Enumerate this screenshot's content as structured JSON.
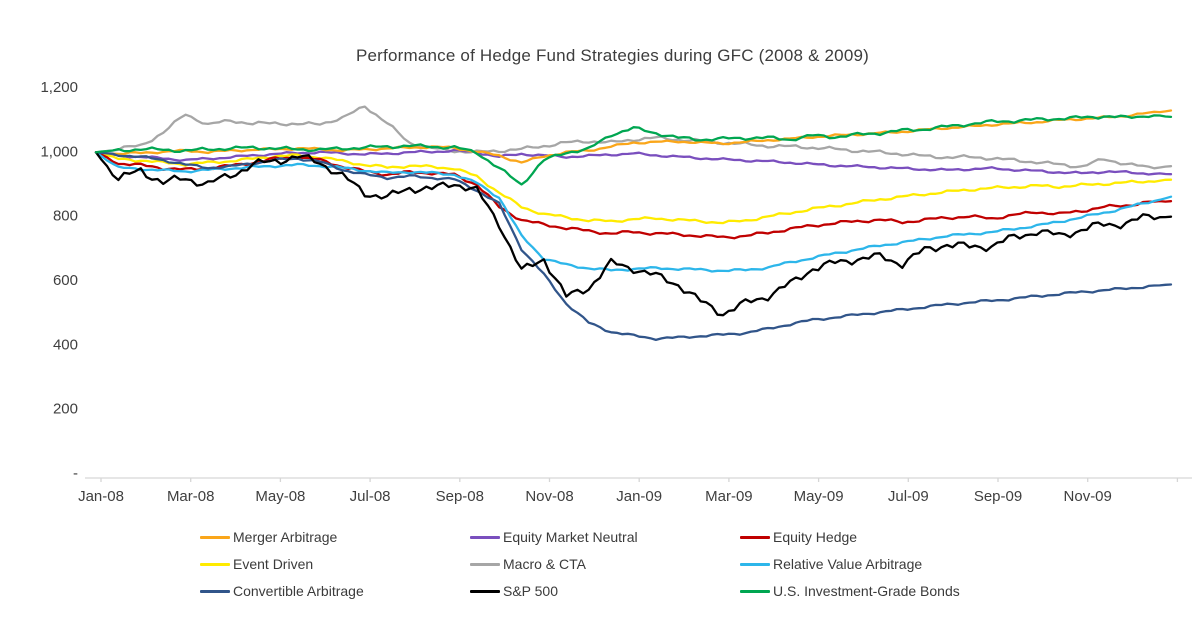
{
  "title": "Performance of Hedge Fund Strategies during GFC (2008 & 2009)",
  "chart_data": {
    "type": "line",
    "title": "Performance of Hedge Fund Strategies during GFC (2008 & 2009)",
    "xlabel": "",
    "ylabel": "",
    "xlim_months": [
      0,
      24
    ],
    "ylim": [
      0,
      1200
    ],
    "grid": false,
    "legend_position": "bottom",
    "x_start_label": "Jan-08",
    "x_step_months": 0.5,
    "x_tick_labels": [
      "Jan-08",
      "Mar-08",
      "May-08",
      "Jul-08",
      "Sep-08",
      "Nov-08",
      "Jan-09",
      "Mar-09",
      "May-09",
      "Jul-09",
      "Sep-09",
      "Nov-09"
    ],
    "y_ticks": [
      {
        "value": 0,
        "label": "-"
      },
      {
        "value": 200,
        "label": "200"
      },
      {
        "value": 400,
        "label": "400"
      },
      {
        "value": 600,
        "label": "600"
      },
      {
        "value": 800,
        "label": "800"
      },
      {
        "value": 1000,
        "label": "1,000"
      },
      {
        "value": 1200,
        "label": "1,200"
      }
    ],
    "axis_color": "#d6d6d6",
    "label_color": "#3f3f3f",
    "legend_rows": [
      [
        "Merger Arbitrage",
        "Equity Market Neutral",
        "Equity Hedge"
      ],
      [
        "Event Driven",
        "Macro & CTA",
        "Relative Value Arbitrage"
      ],
      [
        "Convertible Arbitrage",
        "S&P 500",
        "U.S. Investment-Grade Bonds"
      ]
    ],
    "series": [
      {
        "name": "Macro & CTA",
        "color": "#A6A6A6",
        "jitter": 2.0,
        "values": [
          1000,
          1010,
          1022,
          1060,
          1120,
          1085,
          1100,
          1088,
          1092,
          1086,
          1090,
          1105,
          1145,
          1090,
          1030,
          1012,
          1005,
          1000,
          1005,
          1010,
          1020,
          1030,
          1035,
          1030,
          1040,
          1045,
          1040,
          1035,
          1030,
          1025,
          1020,
          1018,
          1015,
          1010,
          1005,
          1000,
          995,
          988,
          985,
          985,
          982,
          975,
          970,
          962,
          956,
          978,
          965,
          952,
          957
        ]
      },
      {
        "name": "Equity Market Neutral",
        "color": "#7A4FBE",
        "jitter": 1.3,
        "values": [
          1000,
          990,
          986,
          981,
          976,
          980,
          985,
          990,
          995,
          998,
          1000,
          997,
          994,
          996,
          1000,
          1002,
          1005,
          1000,
          986,
          995,
          990,
          986,
          989,
          993,
          996,
          991,
          986,
          982,
          978,
          975,
          972,
          968,
          963,
          959,
          956,
          953,
          950,
          947,
          945,
          948,
          950,
          946,
          942,
          938,
          935,
          940,
          938,
          934,
          932
        ]
      },
      {
        "name": "Merger Arbitrage",
        "color": "#FAA61A",
        "jitter": 1.3,
        "values": [
          1000,
          996,
          998,
          1002,
          1005,
          1001,
          1005,
          1008,
          1010,
          1012,
          1010,
          1006,
          1009,
          1012,
          1015,
          1017,
          1014,
          1002,
          990,
          968,
          988,
          1000,
          1006,
          1018,
          1030,
          1032,
          1034,
          1030,
          1028,
          1032,
          1038,
          1042,
          1048,
          1052,
          1056,
          1060,
          1064,
          1070,
          1076,
          1080,
          1086,
          1090,
          1094,
          1100,
          1104,
          1108,
          1114,
          1122,
          1130
        ]
      },
      {
        "name": "Event Driven",
        "color": "#FFEB00",
        "jitter": 1.6,
        "values": [
          1000,
          979,
          975,
          968,
          963,
          968,
          973,
          980,
          988,
          990,
          985,
          973,
          961,
          953,
          958,
          955,
          950,
          925,
          875,
          830,
          808,
          798,
          788,
          786,
          792,
          795,
          790,
          786,
          781,
          788,
          800,
          812,
          824,
          834,
          844,
          854,
          862,
          870,
          877,
          884,
          889,
          892,
          896,
          893,
          898,
          902,
          906,
          910,
          915
        ]
      },
      {
        "name": "Equity Hedge",
        "color": "#C00000",
        "jitter": 1.8,
        "values": [
          1000,
          966,
          960,
          951,
          946,
          951,
          958,
          968,
          980,
          985,
          976,
          956,
          941,
          931,
          938,
          936,
          930,
          900,
          830,
          790,
          775,
          765,
          755,
          748,
          752,
          748,
          745,
          740,
          736,
          740,
          750,
          762,
          772,
          780,
          786,
          790,
          783,
          790,
          797,
          800,
          795,
          805,
          815,
          808,
          818,
          830,
          835,
          845,
          848
        ]
      },
      {
        "name": "Relative Value Arbitrage",
        "color": "#2DB6EA",
        "jitter": 1.4,
        "values": [
          1000,
          952,
          948,
          944,
          941,
          945,
          950,
          954,
          958,
          961,
          958,
          952,
          943,
          936,
          939,
          936,
          931,
          905,
          860,
          740,
          670,
          650,
          640,
          633,
          638,
          640,
          638,
          635,
          632,
          634,
          642,
          658,
          672,
          686,
          698,
          710,
          720,
          730,
          740,
          746,
          752,
          762,
          772,
          784,
          798,
          812,
          828,
          845,
          862
        ]
      },
      {
        "name": "Convertible Arbitrage",
        "color": "#31558A",
        "jitter": 1.4,
        "values": [
          1000,
          992,
          986,
          976,
          962,
          952,
          956,
          966,
          976,
          981,
          971,
          946,
          931,
          921,
          926,
          921,
          916,
          882,
          840,
          700,
          620,
          530,
          470,
          442,
          430,
          421,
          424,
          429,
          433,
          439,
          451,
          466,
          479,
          487,
          495,
          503,
          511,
          519,
          527,
          533,
          539,
          545,
          553,
          559,
          566,
          571,
          577,
          583,
          589
        ]
      },
      {
        "name": "S&P 500",
        "color": "#000000",
        "jitter": 5.0,
        "values": [
          1000,
          915,
          945,
          905,
          920,
          900,
          930,
          960,
          975,
          985,
          970,
          925,
          875,
          858,
          890,
          885,
          905,
          880,
          780,
          630,
          670,
          550,
          580,
          655,
          640,
          615,
          590,
          535,
          500,
          530,
          555,
          590,
          640,
          655,
          670,
          675,
          655,
          695,
          715,
          705,
          710,
          735,
          755,
          740,
          760,
          775,
          780,
          800,
          800
        ]
      },
      {
        "name": "U.S. Investment-Grade Bonds",
        "color": "#00A651",
        "jitter": 2.0,
        "values": [
          1000,
          1006,
          1010,
          1008,
          1005,
          1010,
          1012,
          1015,
          1012,
          1010,
          1008,
          1012,
          1015,
          1018,
          1020,
          1018,
          1015,
          1000,
          950,
          900,
          975,
          1000,
          1010,
          1055,
          1075,
          1060,
          1045,
          1040,
          1042,
          1045,
          1045,
          1040,
          1052,
          1048,
          1055,
          1060,
          1068,
          1072,
          1080,
          1088,
          1095,
          1098,
          1102,
          1105,
          1108,
          1112,
          1108,
          1115,
          1110
        ]
      }
    ]
  }
}
